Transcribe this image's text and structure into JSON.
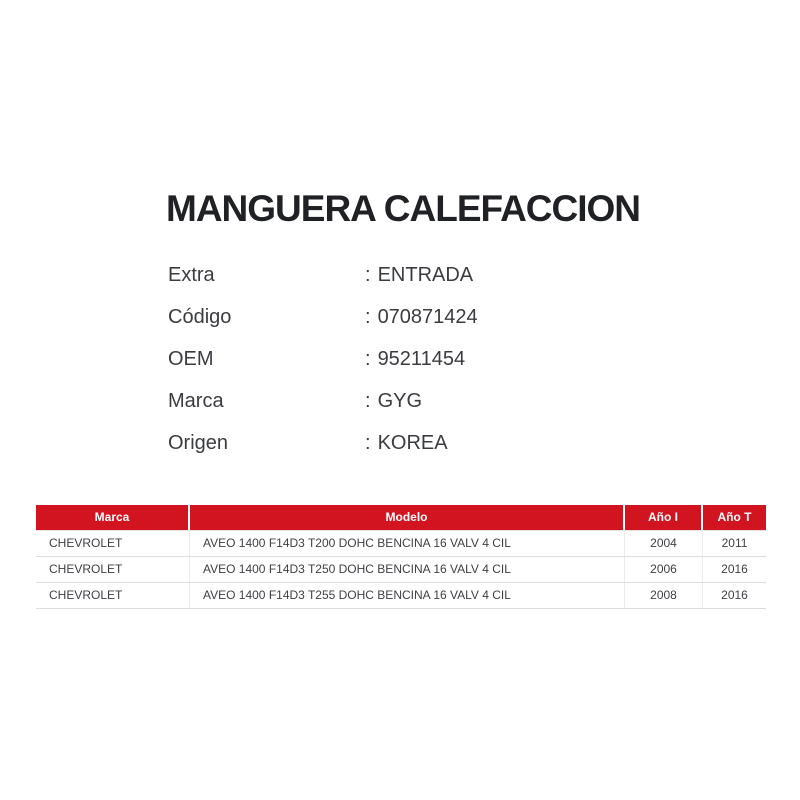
{
  "product": {
    "title": "MANGUERA CALEFACCION"
  },
  "colon": ":",
  "details": [
    {
      "label": "Extra",
      "value": "ENTRADA"
    },
    {
      "label": "Código",
      "value": "070871424"
    },
    {
      "label": "OEM",
      "value": "95211454"
    },
    {
      "label": "Marca",
      "value": "GYG"
    },
    {
      "label": "Origen",
      "value": "KOREA"
    }
  ],
  "table": {
    "columns": [
      {
        "label": "Marca"
      },
      {
        "label": "Modelo"
      },
      {
        "label": "Año I"
      },
      {
        "label": "Año T"
      }
    ],
    "rows": [
      [
        "CHEVROLET",
        "AVEO 1400 F14D3 T200 DOHC BENCINA 16 VALV 4 CIL",
        "2004",
        "2011"
      ],
      [
        "CHEVROLET",
        "AVEO 1400 F14D3 T250 DOHC BENCINA 16 VALV 4 CIL",
        "2006",
        "2016"
      ],
      [
        "CHEVROLET",
        "AVEO 1400 F14D3 T255 DOHC BENCINA 16 VALV 4 CIL",
        "2008",
        "2016"
      ]
    ]
  },
  "theme": {
    "header_bg": "#d11420",
    "header_text": "#ffffff"
  }
}
